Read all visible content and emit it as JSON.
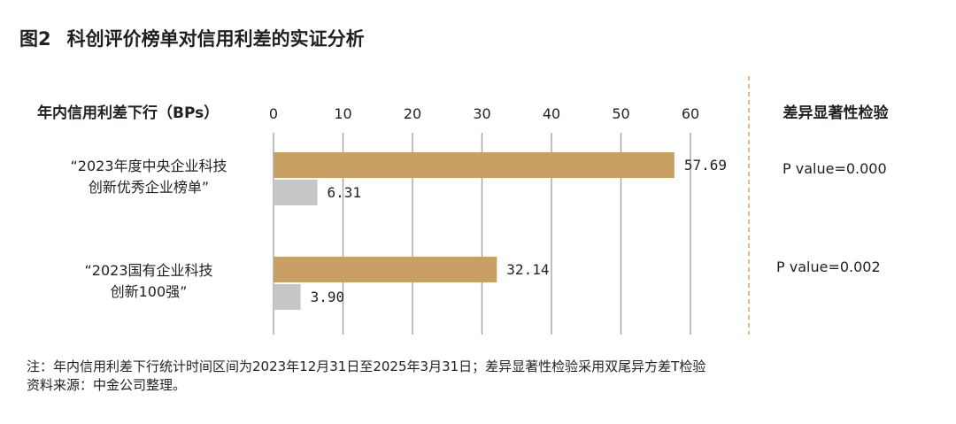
{
  "figure": {
    "number": "图2",
    "title": "科创评价榜单对信用利差的实证分析"
  },
  "chart_data": {
    "type": "bar",
    "ylabel": "年内信用利差下行（BPs）",
    "xlim": [
      0,
      60
    ],
    "xticks": [
      0,
      10,
      20,
      30,
      40,
      50,
      60
    ],
    "grid": "vertical",
    "categories": [
      {
        "lines": [
          "“2023年度中央企业科技",
          "创新优秀企业榜单”"
        ]
      },
      {
        "lines": [
          "“2023国有企业科技",
          "创新100强”"
        ]
      }
    ],
    "series": [
      {
        "values": [
          57.69,
          32.14
        ],
        "labels": [
          "57.69",
          "32.14"
        ],
        "color": "#c9a063"
      },
      {
        "values": [
          6.31,
          3.9
        ],
        "labels": [
          "6.31",
          "3.90"
        ],
        "color": "#c4c6c8"
      }
    ],
    "side_panel": {
      "title": "差异显著性检验",
      "values": [
        "P value=0.000",
        "P value=0.002"
      ]
    }
  },
  "notes": [
    "注：年内信用利差下行统计时间区间为2023年12月31日至2025年3月31日；差异显著性检验采用双尾异方差T检验",
    "资料来源：中金公司整理。"
  ],
  "colors": {
    "divider": "#e0a06a",
    "gridline": "#9d9d9d",
    "text": "#231f20"
  }
}
